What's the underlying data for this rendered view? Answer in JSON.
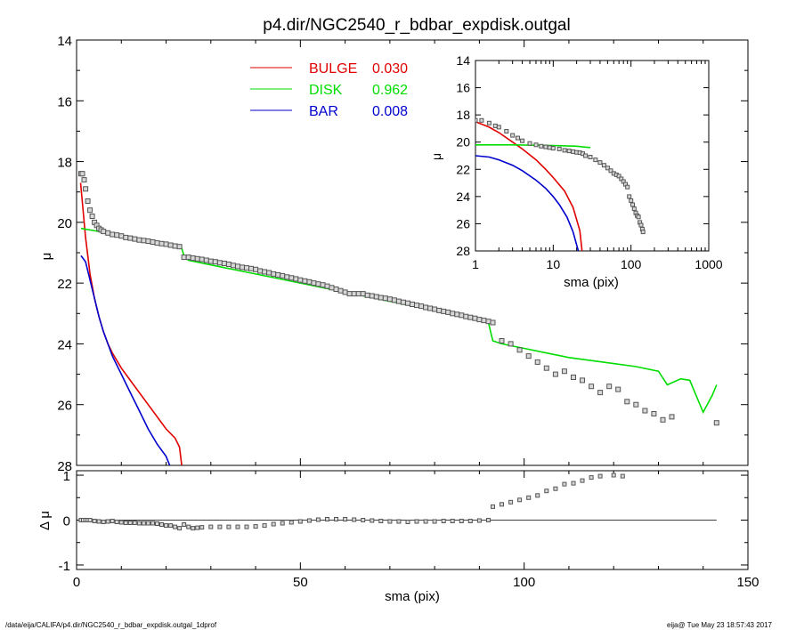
{
  "title": "p4.dir/NGC2540_r_bdbar_expdisk.outgal",
  "footer": {
    "path": "/data/eija/CALIFA/p4.dir/NGC2540_r_bdbar_expdisk.outgal_1dprof",
    "user_date": "eija@  Tue May 23 18:57:43 2017"
  },
  "colors": {
    "bulge": "#e00000",
    "disk": "#00dd00",
    "bar": "#0000cc",
    "data_points": "#555555",
    "axes": "#000000"
  },
  "legend": [
    {
      "key": "bulge",
      "label": "BULGE",
      "value": "0.030"
    },
    {
      "key": "disk",
      "label": "DISK",
      "value": "0.962"
    },
    {
      "key": "bar",
      "label": "BAR",
      "value": "0.008"
    }
  ],
  "chart_data": [
    {
      "id": "main",
      "type": "line",
      "xlabel": "",
      "ylabel": "μ",
      "xlim": [
        0,
        150
      ],
      "ylim": [
        28,
        14
      ],
      "yticks": [
        "14",
        "16",
        "18",
        "20",
        "22",
        "24",
        "26",
        "28"
      ],
      "series": [
        {
          "name": "BULGE",
          "key": "bulge",
          "x": [
            0.9,
            2,
            3,
            4,
            5,
            6,
            7,
            8,
            10,
            12,
            14,
            16,
            18,
            20,
            22,
            23,
            23.5
          ],
          "y": [
            18.7,
            20.5,
            21.7,
            22.5,
            23.1,
            23.6,
            24.0,
            24.3,
            24.8,
            25.2,
            25.6,
            26.0,
            26.4,
            26.8,
            27.1,
            27.4,
            28.0
          ]
        },
        {
          "name": "DISK",
          "key": "disk",
          "x": [
            1,
            5,
            10,
            15,
            20,
            23.5,
            24,
            25,
            30,
            40,
            50,
            60,
            70,
            80,
            90,
            92,
            93,
            95,
            100,
            105,
            110,
            115,
            120,
            125,
            130,
            132,
            135,
            137,
            140,
            142,
            143
          ],
          "y": [
            20.2,
            20.3,
            20.45,
            20.6,
            20.75,
            20.85,
            21.1,
            21.25,
            21.4,
            21.7,
            22.0,
            22.3,
            22.6,
            22.9,
            23.2,
            23.3,
            23.9,
            24.0,
            24.15,
            24.3,
            24.45,
            24.55,
            24.65,
            24.75,
            24.9,
            25.35,
            25.15,
            25.2,
            26.25,
            25.7,
            25.35
          ]
        },
        {
          "name": "BAR",
          "key": "bar",
          "x": [
            1,
            2,
            3,
            4,
            5,
            6,
            7,
            8,
            10,
            12,
            14,
            16,
            18,
            20,
            20.8
          ],
          "y": [
            21.1,
            21.3,
            21.9,
            22.5,
            23.1,
            23.6,
            24.0,
            24.4,
            25.0,
            25.6,
            26.2,
            26.8,
            27.3,
            27.7,
            28.0
          ]
        }
      ],
      "points": {
        "x": [
          1,
          1.3,
          1.7,
          2,
          2.5,
          3,
          3.5,
          4,
          4.5,
          5,
          5.5,
          6,
          7,
          8,
          9,
          10,
          11,
          12,
          13,
          14,
          15,
          16,
          17,
          18,
          19,
          20,
          21,
          22,
          23,
          24,
          25,
          26,
          27,
          28,
          29,
          30,
          31,
          32,
          33,
          34,
          35,
          36,
          37,
          38,
          39,
          40,
          41,
          42,
          43,
          44,
          45,
          46,
          47,
          48,
          49,
          50,
          51,
          52,
          53,
          54,
          55,
          56,
          57,
          58,
          59,
          60,
          61,
          62,
          63,
          64,
          65,
          66,
          67,
          68,
          69,
          70,
          71,
          72,
          73,
          74,
          75,
          76,
          77,
          78,
          79,
          80,
          81,
          82,
          83,
          84,
          85,
          86,
          87,
          88,
          89,
          90,
          91,
          92,
          93,
          95,
          97,
          99,
          101,
          103,
          105,
          107,
          109,
          111,
          113,
          115,
          117,
          119,
          121,
          123,
          125,
          127,
          129,
          131,
          133,
          143
        ],
        "y": [
          18.4,
          18.4,
          18.6,
          18.9,
          19.3,
          19.6,
          19.8,
          20.0,
          20.1,
          20.2,
          20.25,
          20.3,
          20.35,
          20.4,
          20.42,
          20.45,
          20.5,
          20.52,
          20.55,
          20.58,
          20.6,
          20.62,
          20.65,
          20.68,
          20.7,
          20.72,
          20.75,
          20.78,
          20.8,
          21.15,
          21.15,
          21.18,
          21.2,
          21.22,
          21.25,
          21.28,
          21.3,
          21.33,
          21.35,
          21.38,
          21.42,
          21.45,
          21.48,
          21.5,
          21.52,
          21.55,
          21.6,
          21.63,
          21.66,
          21.7,
          21.73,
          21.76,
          21.8,
          21.83,
          21.86,
          21.9,
          21.93,
          21.96,
          22.0,
          22.03,
          22.06,
          22.1,
          22.15,
          22.2,
          22.25,
          22.3,
          22.35,
          22.35,
          22.35,
          22.35,
          22.4,
          22.42,
          22.45,
          22.48,
          22.5,
          22.53,
          22.56,
          22.6,
          22.63,
          22.66,
          22.7,
          22.73,
          22.76,
          22.8,
          22.83,
          22.86,
          22.9,
          22.93,
          22.96,
          23.0,
          23.03,
          23.06,
          23.1,
          23.13,
          23.16,
          23.2,
          23.23,
          23.26,
          23.3,
          23.9,
          24.0,
          24.2,
          24.4,
          24.6,
          24.8,
          25.0,
          24.9,
          25.1,
          25.2,
          25.4,
          25.6,
          25.4,
          25.5,
          25.9,
          26.0,
          26.2,
          26.3,
          26.5,
          26.4,
          26.6
        ]
      }
    },
    {
      "id": "residual",
      "type": "scatter",
      "xlabel": "sma (pix)",
      "ylabel": "Δ μ",
      "xlim": [
        0,
        150
      ],
      "ylim": [
        -1.1,
        1.1
      ],
      "xticks": [
        "0",
        "50",
        "100",
        "150"
      ],
      "yticks": [
        "1",
        "0",
        "-1"
      ],
      "points": {
        "x": [
          1,
          1.5,
          2,
          2.5,
          3,
          4,
          5,
          6,
          7,
          8,
          9,
          10,
          11,
          12,
          13,
          14,
          15,
          16,
          17,
          18,
          19,
          20,
          21,
          22,
          23,
          24,
          25,
          26,
          27,
          28,
          30,
          32,
          34,
          36,
          38,
          40,
          42,
          44,
          46,
          48,
          50,
          52,
          54,
          56,
          58,
          60,
          62,
          64,
          66,
          68,
          70,
          72,
          74,
          76,
          78,
          80,
          82,
          84,
          86,
          88,
          90,
          92,
          93,
          95,
          97,
          99,
          101,
          103,
          105,
          107,
          109,
          111,
          113,
          115,
          117,
          120,
          122
        ],
        "y": [
          0.0,
          0.0,
          0.0,
          0.0,
          0.0,
          -0.02,
          -0.03,
          -0.04,
          -0.03,
          -0.02,
          -0.04,
          -0.05,
          -0.06,
          -0.06,
          -0.06,
          -0.07,
          -0.07,
          -0.07,
          -0.07,
          -0.08,
          -0.1,
          -0.12,
          -0.12,
          -0.15,
          -0.18,
          -0.1,
          -0.15,
          -0.18,
          -0.17,
          -0.16,
          -0.15,
          -0.15,
          -0.15,
          -0.15,
          -0.15,
          -0.14,
          -0.12,
          -0.09,
          -0.07,
          -0.05,
          -0.03,
          -0.01,
          0.01,
          0.02,
          0.02,
          0.02,
          0.01,
          0.0,
          -0.01,
          -0.02,
          -0.03,
          -0.03,
          -0.04,
          -0.03,
          -0.03,
          -0.03,
          -0.02,
          -0.02,
          -0.02,
          -0.02,
          -0.01,
          0.0,
          0.3,
          0.35,
          0.4,
          0.45,
          0.5,
          0.55,
          0.65,
          0.7,
          0.8,
          0.82,
          0.88,
          0.95,
          0.98,
          1.0,
          0.98
        ]
      }
    },
    {
      "id": "inset",
      "type": "line",
      "xlabel": "sma (pix)",
      "ylabel": "μ",
      "xscale": "log",
      "xlim": [
        1,
        1000
      ],
      "ylim": [
        28,
        14
      ],
      "xticks": [
        {
          "v": 1,
          "t": "1"
        },
        {
          "v": 10,
          "t": "10"
        },
        {
          "v": 100,
          "t": "100"
        },
        {
          "v": 1000,
          "t": "1000"
        }
      ],
      "yticks": [
        "14",
        "16",
        "18",
        "20",
        "22",
        "24",
        "26",
        "28"
      ],
      "series": [
        {
          "name": "BULGE",
          "key": "bulge",
          "x": [
            1,
            1.5,
            2,
            3,
            4,
            6,
            8,
            10,
            14,
            18,
            22,
            23.5
          ],
          "y": [
            18.5,
            18.9,
            19.3,
            20.0,
            20.5,
            21.3,
            22.0,
            22.6,
            23.6,
            24.8,
            26.5,
            28.0
          ]
        },
        {
          "name": "DISK",
          "key": "disk",
          "x": [
            1,
            3,
            10,
            20,
            24,
            30
          ],
          "y": [
            20.2,
            20.2,
            20.25,
            20.3,
            20.35,
            20.4
          ]
        },
        {
          "name": "BAR",
          "key": "bar",
          "x": [
            1,
            1.5,
            2,
            3,
            4,
            6,
            8,
            10,
            12,
            15,
            18,
            21
          ],
          "y": [
            21.0,
            21.1,
            21.3,
            21.7,
            22.1,
            22.8,
            23.4,
            24.0,
            24.6,
            25.5,
            26.6,
            28.0
          ]
        }
      ],
      "points": {
        "x": [
          1,
          1.2,
          1.5,
          1.8,
          2,
          2.5,
          3,
          3.5,
          4,
          5,
          6,
          7,
          8,
          9,
          10,
          12,
          14,
          16,
          18,
          20,
          22,
          24,
          26,
          30,
          35,
          40,
          45,
          50,
          55,
          60,
          65,
          70,
          75,
          80,
          85,
          90,
          95,
          100,
          105,
          110,
          115,
          120,
          125,
          130,
          135,
          140,
          143
        ],
        "y": [
          18.4,
          18.4,
          18.6,
          18.8,
          18.9,
          19.2,
          19.5,
          19.7,
          19.9,
          20.1,
          20.2,
          20.3,
          20.35,
          20.4,
          20.45,
          20.5,
          20.6,
          20.65,
          20.7,
          20.75,
          20.78,
          20.85,
          21.0,
          21.1,
          21.3,
          21.5,
          21.7,
          21.9,
          22.1,
          22.3,
          22.4,
          22.5,
          22.7,
          22.9,
          23.1,
          23.3,
          24.0,
          24.3,
          24.6,
          24.9,
          25.2,
          25.4,
          25.5,
          25.9,
          26.1,
          26.4,
          26.6
        ]
      }
    }
  ]
}
